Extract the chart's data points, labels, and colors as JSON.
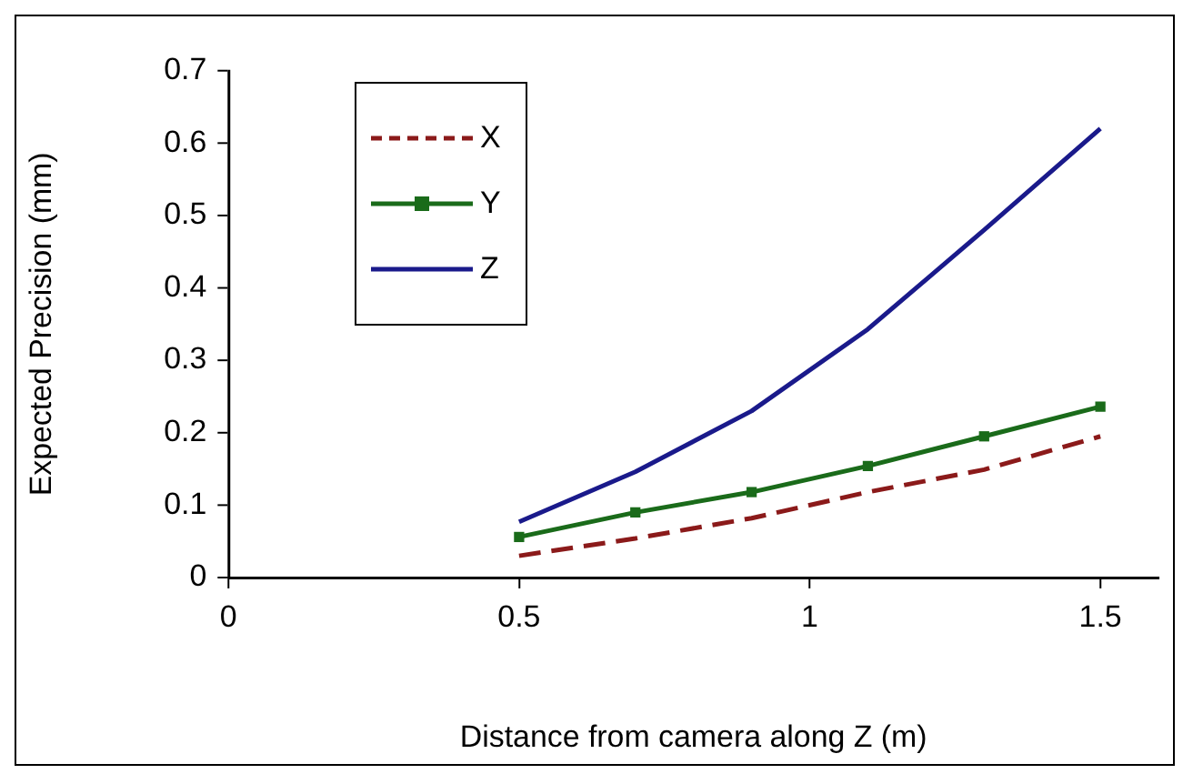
{
  "chart_data": {
    "type": "line",
    "xlabel": "Distance from camera along Z (m)",
    "ylabel": "Expected Precision (mm)",
    "xlim": [
      0,
      1.6
    ],
    "xticks": [
      0,
      0.5,
      1,
      1.5
    ],
    "ylim": [
      0,
      0.7
    ],
    "yticks": [
      0,
      0.1,
      0.2,
      0.3,
      0.4,
      0.5,
      0.6,
      0.7
    ],
    "grid": false,
    "legend": "top left",
    "x": [
      0.5,
      0.7,
      0.9,
      1.1,
      1.3,
      1.5
    ],
    "series": [
      {
        "name": "X",
        "color": "#8b1a1a",
        "line_style": "dashed",
        "marker": "none",
        "values": [
          0.03,
          0.054,
          0.082,
          0.118,
          0.149,
          0.195
        ]
      },
      {
        "name": "Y",
        "color": "#1a6b1a",
        "line_style": "solid",
        "marker": "square",
        "values": [
          0.056,
          0.09,
          0.118,
          0.154,
          0.195,
          0.236
        ]
      },
      {
        "name": "Z",
        "color": "#1a1a8b",
        "line_style": "solid",
        "marker": "none",
        "values": [
          0.077,
          0.146,
          0.23,
          0.343,
          0.48,
          0.62
        ]
      }
    ]
  }
}
